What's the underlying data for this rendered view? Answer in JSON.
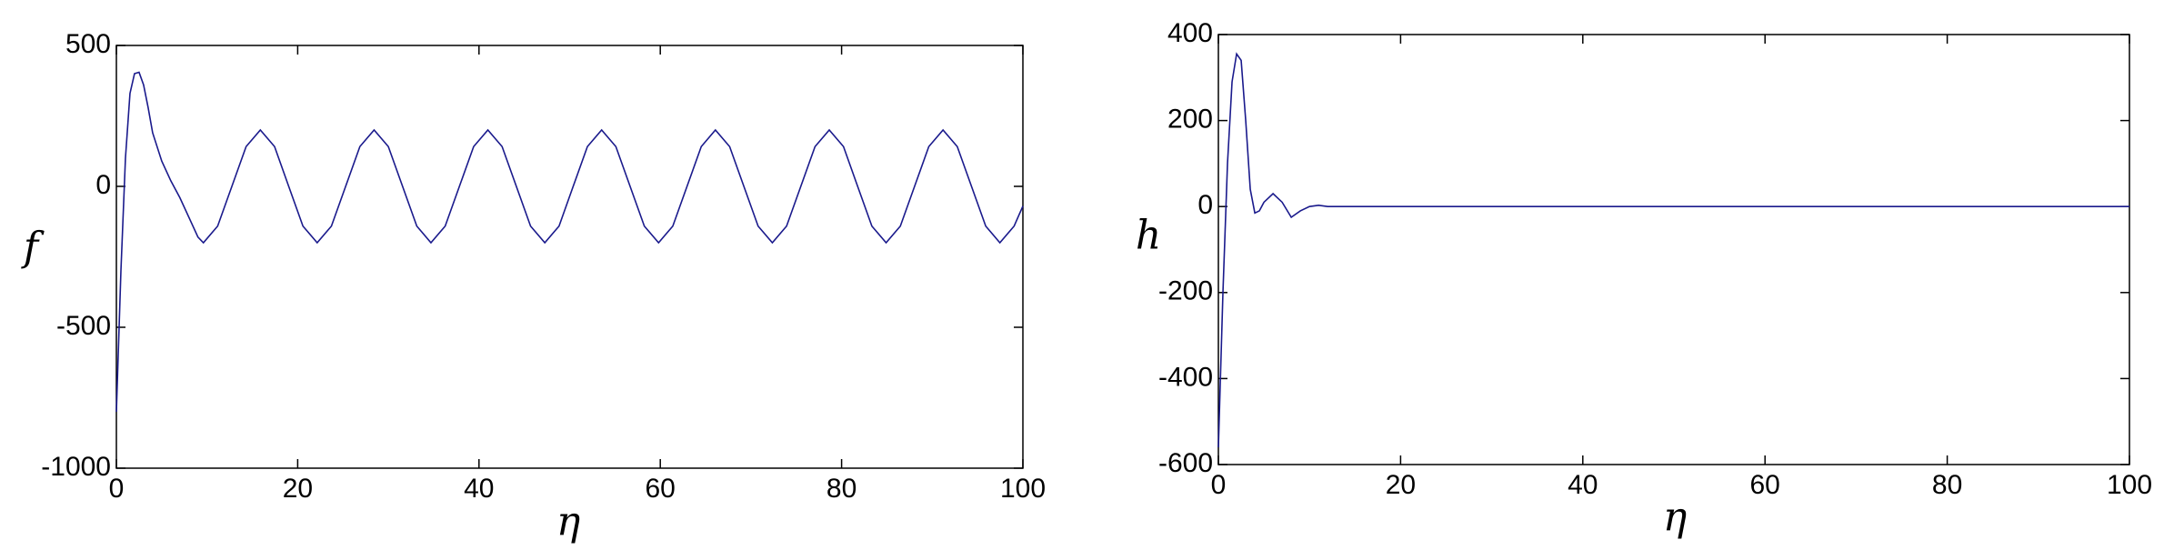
{
  "chart_data": [
    {
      "type": "line",
      "xlabel": "η",
      "ylabel": "f",
      "xlim": [
        0,
        100
      ],
      "ylim": [
        -1000,
        500
      ],
      "xticks": [
        0,
        20,
        40,
        60,
        80,
        100
      ],
      "yticks": [
        -1000,
        -500,
        0,
        500
      ],
      "series": [
        {
          "color": "#1a1a8c",
          "x": [
            0,
            0.5,
            1,
            1.5,
            2,
            2.5,
            3,
            3.5,
            4,
            5,
            6,
            7,
            8,
            9,
            9.6,
            11.17,
            12.74,
            14.31,
            15.88,
            17.45,
            19.01,
            20.58,
            22.15,
            23.72,
            25.29,
            26.86,
            28.43,
            30.0,
            31.57,
            33.14,
            34.7,
            36.27,
            37.84,
            39.41,
            40.98,
            42.55,
            44.12,
            45.69,
            47.26,
            48.83,
            50.39,
            51.96,
            53.53,
            55.1,
            56.67,
            58.24,
            59.81,
            61.38,
            62.95,
            64.52,
            66.08,
            67.65,
            69.22,
            70.79,
            72.36,
            73.93,
            75.5,
            77.07,
            78.64,
            80.21,
            81.77,
            83.34,
            84.91,
            86.48,
            88.05,
            89.62,
            91.19,
            92.76,
            94.33,
            95.9,
            97.46,
            99.03,
            100
          ],
          "values": [
            -800,
            -300,
            100,
            330,
            400,
            405,
            360,
            280,
            190,
            90,
            20,
            -40,
            -110,
            -180,
            -200,
            -141,
            0,
            141,
            200,
            141,
            0,
            -141,
            -200,
            -141,
            0,
            141,
            200,
            141,
            0,
            -141,
            -200,
            -141,
            0,
            141,
            200,
            141,
            0,
            -141,
            -200,
            -141,
            0,
            141,
            200,
            141,
            0,
            -141,
            -200,
            -141,
            0,
            141,
            200,
            141,
            0,
            -141,
            -200,
            -141,
            0,
            141,
            200,
            141,
            0,
            -141,
            -200,
            -141,
            0,
            141,
            200,
            141,
            0,
            -141,
            -200,
            -141,
            -70
          ]
        }
      ]
    },
    {
      "type": "line",
      "xlabel": "η",
      "ylabel": "h",
      "xlim": [
        0,
        100
      ],
      "ylim": [
        -600,
        400
      ],
      "xticks": [
        0,
        20,
        40,
        60,
        80,
        100
      ],
      "yticks": [
        -600,
        -400,
        -200,
        0,
        200,
        400
      ],
      "series": [
        {
          "color": "#1a1a8c",
          "x": [
            0,
            0.5,
            1,
            1.5,
            2,
            2.5,
            3,
            3.5,
            4,
            4.5,
            5,
            6,
            7,
            8,
            9,
            10,
            11,
            12,
            100
          ],
          "values": [
            -560,
            -200,
            100,
            290,
            355,
            340,
            200,
            40,
            -15,
            -10,
            10,
            30,
            10,
            -25,
            -10,
            0,
            3,
            0,
            0
          ]
        }
      ]
    }
  ]
}
